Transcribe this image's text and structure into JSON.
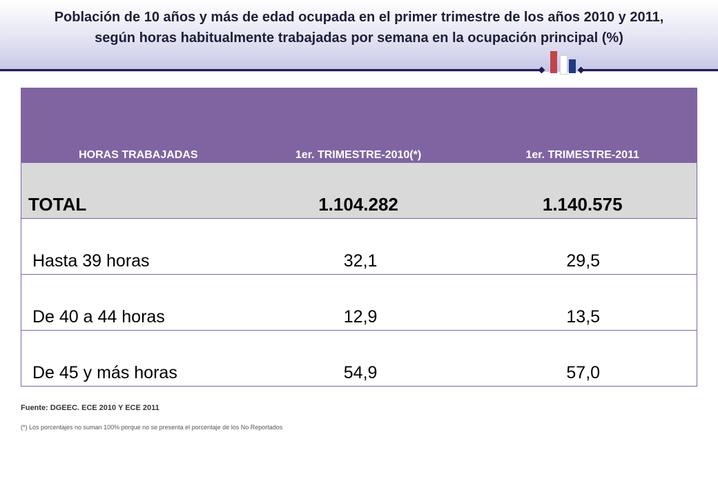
{
  "header": {
    "title_line1": "Población  de 10 años y más de edad ocupada  en el primer trimestre de los años 2010 y 2011,",
    "title_line2": "según horas habitualmente trabajadas por semana en  la ocupación principal (%)"
  },
  "table": {
    "columns": [
      "HORAS TRABAJADAS",
      "1er. TRIMESTRE-2010(*)",
      "1er. TRIMESTRE-2011"
    ],
    "total": {
      "label": "TOTAL",
      "v2010": "1.104.282",
      "v2011": "1.140.575"
    },
    "rows": [
      {
        "label": "Hasta 39 horas",
        "v2010": "32,1",
        "v2011": "29,5"
      },
      {
        "label": "De 40 a 44 horas",
        "v2010": "12,9",
        "v2011": "13,5"
      },
      {
        "label": "De 45 y más horas",
        "v2010": "54,9",
        "v2011": "57,0"
      }
    ]
  },
  "footer": {
    "source": "Fuente: DGEEC. ECE 2010 Y ECE 2011",
    "note": "(*) Los porcentajes no suman 100% porque  no se presenta el porcentaje de los No Reportados"
  },
  "colors": {
    "header_purple": "#8064a2",
    "total_gray": "#d9d9d9",
    "rule_navy": "#1c1c55"
  }
}
